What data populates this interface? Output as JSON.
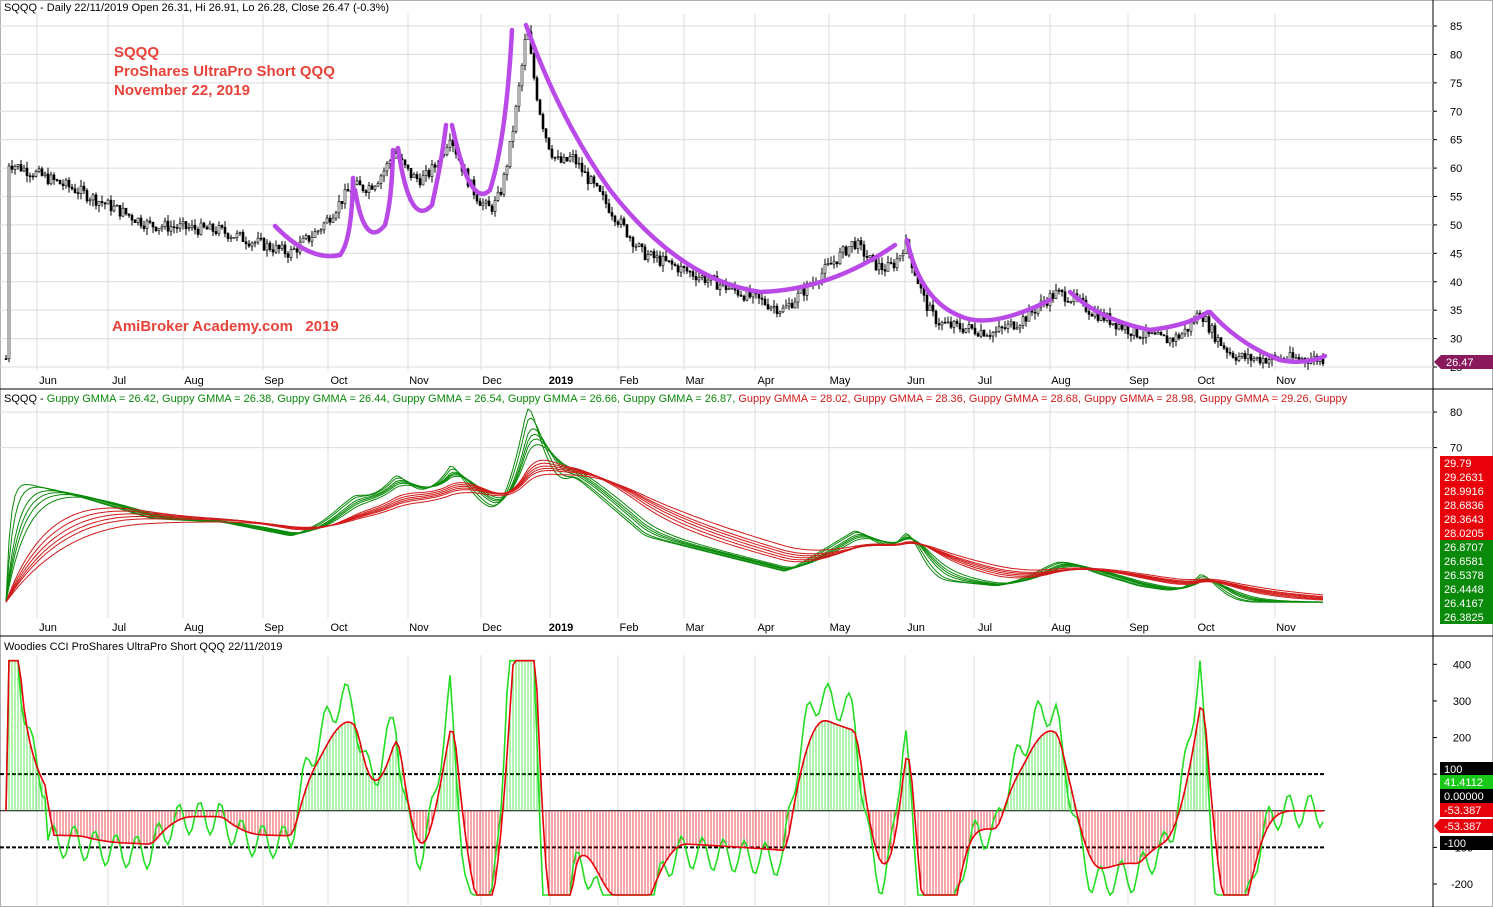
{
  "price_panel": {
    "header": "SQQQ - Daily 22/11/2019 Open 26.31, Hi 26.91, Lo 26.28, Close 26.47 (-0.3%)",
    "annotation": [
      "SQQQ",
      "ProShares UltraPro Short QQQ",
      "November 22, 2019"
    ],
    "watermark": "AmiBroker Academy.com   2019",
    "last_price_tag": "26.47",
    "y_ticks": [
      "85",
      "80",
      "75",
      "70",
      "65",
      "60",
      "55",
      "50",
      "45",
      "40",
      "35",
      "30",
      "25"
    ]
  },
  "gmma_panel": {
    "header_parts": [
      {
        "text": "SQQQ - ",
        "color": "#000000"
      },
      {
        "text": "Guppy GMMA = 26.42, ",
        "color": "#0a8a0a"
      },
      {
        "text": "Guppy GMMA = 26.38, ",
        "color": "#0a8a0a"
      },
      {
        "text": "Guppy GMMA = 26.44, ",
        "color": "#0a8a0a"
      },
      {
        "text": "Guppy GMMA = 26.54, ",
        "color": "#0a8a0a"
      },
      {
        "text": "Guppy GMMA = 26.66, ",
        "color": "#0a8a0a"
      },
      {
        "text": "Guppy GMMA = 26.87, ",
        "color": "#0a8a0a"
      },
      {
        "text": "Guppy GMMA = 28.02, ",
        "color": "#d11a1a"
      },
      {
        "text": "Guppy GMMA = 28.36, ",
        "color": "#d11a1a"
      },
      {
        "text": "Guppy GMMA = 28.68, ",
        "color": "#d11a1a"
      },
      {
        "text": "Guppy GMMA = 28.98, ",
        "color": "#d11a1a"
      },
      {
        "text": "Guppy GMMA = 29.26, ",
        "color": "#d11a1a"
      },
      {
        "text": "Guppy",
        "color": "#d11a1a"
      }
    ],
    "y_ticks": [
      "80",
      "70"
    ],
    "tags": [
      {
        "text": "29.79",
        "color": "#e8000b"
      },
      {
        "text": "29.2631",
        "color": "#e8000b"
      },
      {
        "text": "28.9916",
        "color": "#e8000b"
      },
      {
        "text": "28.6836",
        "color": "#e8000b"
      },
      {
        "text": "28.3643",
        "color": "#e8000b"
      },
      {
        "text": "28.0205",
        "color": "#e8000b"
      },
      {
        "text": "26.8707",
        "color": "#0a8a0a"
      },
      {
        "text": "26.6581",
        "color": "#0a8a0a"
      },
      {
        "text": "26.5378",
        "color": "#0a8a0a"
      },
      {
        "text": "26.4448",
        "color": "#0a8a0a"
      },
      {
        "text": "26.4167",
        "color": "#0a8a0a"
      },
      {
        "text": "26.3825",
        "color": "#0a8a0a"
      }
    ]
  },
  "cci_panel": {
    "header": "Woodies CCI  ProShares UltraPro Short QQQ 22/11/2019",
    "y_ticks": [
      "400",
      "300",
      "200",
      "100",
      "-100",
      "-200"
    ],
    "tags": [
      {
        "text": "100",
        "color": "#000000"
      },
      {
        "text": "41.4112",
        "color": "#19c819"
      },
      {
        "text": "0.00000",
        "color": "#000000"
      },
      {
        "text": "-53.387",
        "color": "#e8000b"
      },
      {
        "text": "-53.387",
        "color": "#e8000b"
      },
      {
        "text": "-100",
        "color": "#000000"
      }
    ]
  },
  "x_axis_labels": [
    "Jun",
    "Jul",
    "Aug",
    "Sep",
    "Oct",
    "Nov",
    "Dec",
    "2019",
    "Feb",
    "Mar",
    "Apr",
    "May",
    "Jun",
    "Jul",
    "Aug",
    "Sep",
    "Oct",
    "Nov"
  ],
  "colors": {
    "candle": "#000000",
    "arc": "#b94ae8",
    "gmma_short": "#0a8a0a",
    "gmma_long": "#d11a1a",
    "cci_main": "#e8000b",
    "cci_turbo": "#22dd22",
    "cci_hist": "#e8000b",
    "annotation": "#e8433a",
    "grid": "#dcdcdc"
  },
  "chart_data": [
    {
      "type": "candlestick",
      "series": [
        {
          "name": "SQQQ",
          "anchors_x_month_index": [
            0,
            1,
            2,
            3,
            4,
            5,
            6,
            7,
            8,
            9,
            10,
            11,
            12,
            13,
            14,
            15,
            16,
            17,
            17.6
          ],
          "close_anchors": [
            61,
            56,
            50,
            49,
            45,
            55,
            57,
            52,
            62,
            45,
            40,
            35,
            47,
            33,
            31,
            37,
            31,
            28,
            26.47
          ]
        }
      ],
      "ylim": [
        25,
        87
      ],
      "last_close": 26.47
    },
    {
      "type": "line",
      "series": [
        {
          "name": "Guppy GMMA",
          "values": [
            26.42,
            26.38,
            26.44,
            26.54,
            26.66,
            26.87,
            28.02,
            28.36,
            28.68,
            28.98,
            29.26
          ]
        }
      ],
      "ylim": [
        26,
        82
      ]
    },
    {
      "type": "line",
      "reference_lines": [
        100,
        0,
        -100
      ],
      "ylim": [
        -250,
        430
      ],
      "last_values": {
        "cci": -53.387,
        "turbo": 41.4112
      }
    }
  ]
}
